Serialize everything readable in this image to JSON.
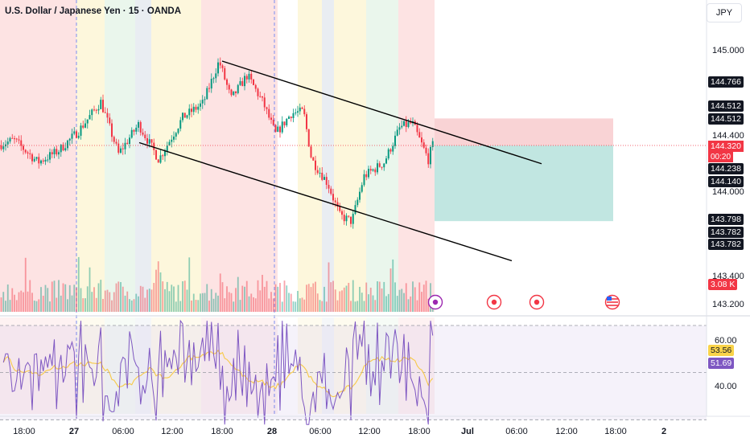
{
  "header": {
    "title": "U.S. Dollar / Japanese Yen · 15 · OANDA"
  },
  "currency_button": "JPY",
  "colors": {
    "up": "#089981",
    "down": "#f23645",
    "rsi": "#7e57c2",
    "rsi_ma": "#f7c948"
  },
  "price_axis": {
    "ticks": [
      {
        "label": "145.000",
        "value": 145.0
      },
      {
        "label": "144.400",
        "value": 144.4
      },
      {
        "label": "144.000",
        "value": 144.0
      },
      {
        "label": "143.400",
        "value": 143.4
      },
      {
        "label": "143.200",
        "value": 143.2
      }
    ],
    "tags": [
      {
        "text": "144.766",
        "value": 144.766,
        "style": "dark"
      },
      {
        "text": "144.512",
        "value": 144.512,
        "style": "dark"
      },
      {
        "text": "144.512",
        "value": 144.512,
        "style": "dark",
        "offset": 16
      },
      {
        "text": "144.238",
        "value": 144.238,
        "style": "dark"
      },
      {
        "text": "144.140",
        "value": 144.14,
        "style": "dark"
      },
      {
        "text": "143.798",
        "value": 143.798,
        "style": "dark"
      },
      {
        "text": "143.782",
        "value": 143.782,
        "style": "dark"
      },
      {
        "text": "143.782",
        "value": 143.782,
        "style": "dark",
        "offset": 16
      }
    ],
    "current_price": "144.320",
    "current_value": 144.32,
    "countdown": "00:20",
    "volume_tag": "3.08 K"
  },
  "rsi": {
    "value_tag": "53.56",
    "ma_tag": "51.69",
    "levels": [
      {
        "label": "60.00",
        "value": 60
      },
      {
        "label": "40.00",
        "value": 40
      }
    ]
  },
  "time_axis": [
    {
      "label": "18:00",
      "bold": false
    },
    {
      "label": "27",
      "bold": true
    },
    {
      "label": "06:00",
      "bold": false
    },
    {
      "label": "12:00",
      "bold": false
    },
    {
      "label": "18:00",
      "bold": false
    },
    {
      "label": "28",
      "bold": true
    },
    {
      "label": "06:00",
      "bold": false
    },
    {
      "label": "12:00",
      "bold": false
    },
    {
      "label": "18:00",
      "bold": false
    },
    {
      "label": "Jul",
      "bold": true
    },
    {
      "label": "06:00",
      "bold": false
    },
    {
      "label": "12:00",
      "bold": false
    },
    {
      "label": "18:00",
      "bold": false
    },
    {
      "label": "2",
      "bold": true
    }
  ],
  "position_tool": {
    "entry": 144.32,
    "stop": 144.512,
    "target": 143.782
  },
  "channel": {
    "upper": {
      "from_price": 144.92,
      "to_price": 144.19
    },
    "lower": {
      "from_price": 144.34,
      "to_price": 143.5
    }
  }
}
